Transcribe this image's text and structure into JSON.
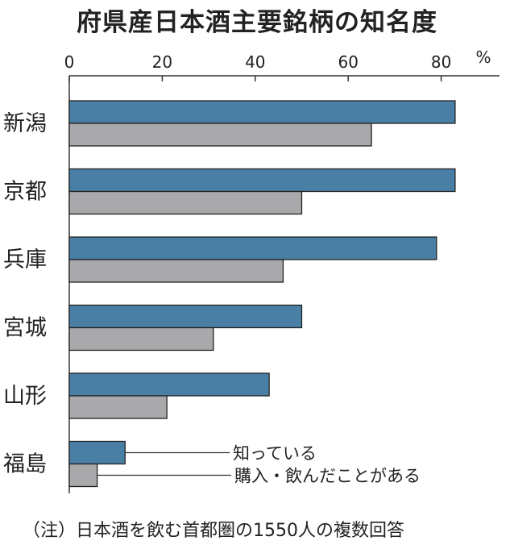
{
  "chart_data": {
    "type": "bar",
    "orientation": "horizontal",
    "title": "府県産日本酒主要銘柄の知名度",
    "unit": "%",
    "xlim": [
      0,
      90
    ],
    "ticks": [
      0,
      20,
      40,
      60,
      80
    ],
    "categories": [
      "新潟",
      "京都",
      "兵庫",
      "宮城",
      "山形",
      "福島"
    ],
    "series": [
      {
        "name": "知っている",
        "color": "#4a7fa5",
        "values": [
          83,
          83,
          79,
          50,
          43,
          12
        ]
      },
      {
        "name": "購入・飲んだことがある",
        "color": "#a9a9ab",
        "values": [
          65,
          50,
          46,
          31,
          21,
          6
        ]
      }
    ],
    "grid": false,
    "note": "（注）日本酒を飲む首都圏の1550人の複数回答"
  }
}
